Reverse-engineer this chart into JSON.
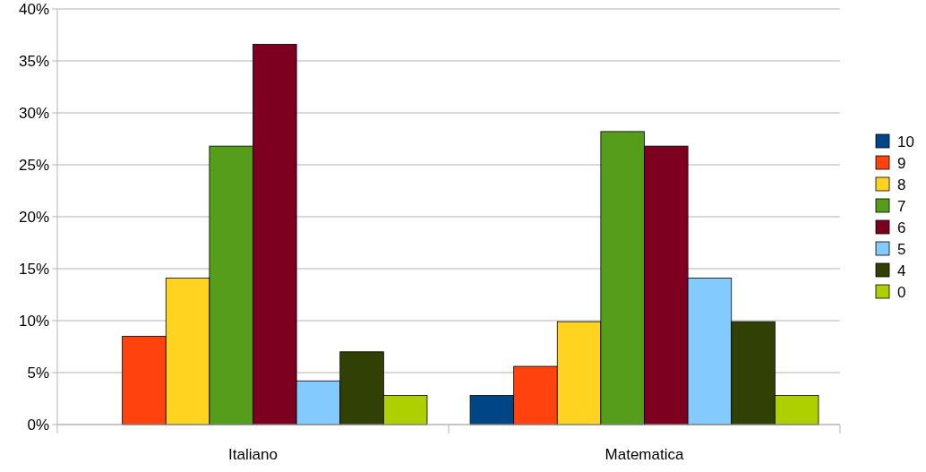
{
  "chart_data": {
    "type": "bar",
    "categories": [
      "Italiano",
      "Matematica"
    ],
    "series": [
      {
        "name": "10",
        "color": "#004586",
        "values": [
          0,
          2.8
        ]
      },
      {
        "name": "9",
        "color": "#ff420e",
        "values": [
          8.5,
          5.6
        ]
      },
      {
        "name": "8",
        "color": "#ffd320",
        "values": [
          14.1,
          9.9
        ]
      },
      {
        "name": "7",
        "color": "#579d1c",
        "values": [
          26.8,
          28.2
        ]
      },
      {
        "name": "6",
        "color": "#7e0021",
        "values": [
          36.6,
          26.8
        ]
      },
      {
        "name": "5",
        "color": "#83caff",
        "values": [
          4.2,
          14.1
        ]
      },
      {
        "name": "4",
        "color": "#314004",
        "values": [
          7.0,
          9.9
        ]
      },
      {
        "name": "0",
        "color": "#aecf00",
        "values": [
          2.8,
          2.8
        ]
      }
    ],
    "ylim": [
      0,
      40
    ],
    "yticks": [
      {
        "value": 0,
        "label": "0%"
      },
      {
        "value": 5,
        "label": "5%"
      },
      {
        "value": 10,
        "label": "10%"
      },
      {
        "value": 15,
        "label": "15%"
      },
      {
        "value": 20,
        "label": "20%"
      },
      {
        "value": 25,
        "label": "25%"
      },
      {
        "value": 30,
        "label": "30%"
      },
      {
        "value": 35,
        "label": "35%"
      },
      {
        "value": 40,
        "label": "40%"
      }
    ],
    "grid": "y",
    "legend": "right"
  }
}
